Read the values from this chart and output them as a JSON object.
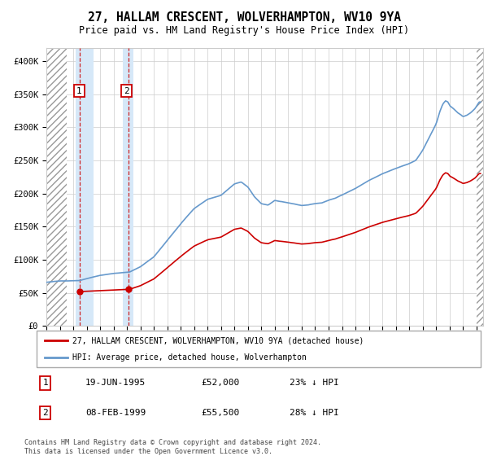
{
  "title": "27, HALLAM CRESCENT, WOLVERHAMPTON, WV10 9YA",
  "subtitle": "Price paid vs. HM Land Registry's House Price Index (HPI)",
  "sale1_year": 1995.46,
  "sale1_price": 52000,
  "sale2_year": 1999.11,
  "sale2_price": 55500,
  "hpi_color": "#6699cc",
  "property_color": "#cc0000",
  "legend1": "27, HALLAM CRESCENT, WOLVERHAMPTON, WV10 9YA (detached house)",
  "legend2": "HPI: Average price, detached house, Wolverhampton",
  "table_row1": [
    "1",
    "19-JUN-1995",
    "£52,000",
    "23% ↓ HPI"
  ],
  "table_row2": [
    "2",
    "08-FEB-1999",
    "£55,500",
    "28% ↓ HPI"
  ],
  "footnote": "Contains HM Land Registry data © Crown copyright and database right 2024.\nThis data is licensed under the Open Government Licence v3.0.",
  "ylim": [
    0,
    420000
  ],
  "ytick_vals": [
    0,
    50000,
    100000,
    150000,
    200000,
    250000,
    300000,
    350000,
    400000
  ],
  "ytick_labels": [
    "£0",
    "£50K",
    "£100K",
    "£150K",
    "£200K",
    "£250K",
    "£300K",
    "£350K",
    "£400K"
  ],
  "xmin": 1993.0,
  "xmax": 2025.5,
  "hatch_left_end": 1994.5,
  "hatch_right_start": 2025.0,
  "sale1_shade_start": 1995.2,
  "sale1_shade_end": 1996.5,
  "sale2_shade_start": 1998.7,
  "sale2_shade_end": 1999.5
}
